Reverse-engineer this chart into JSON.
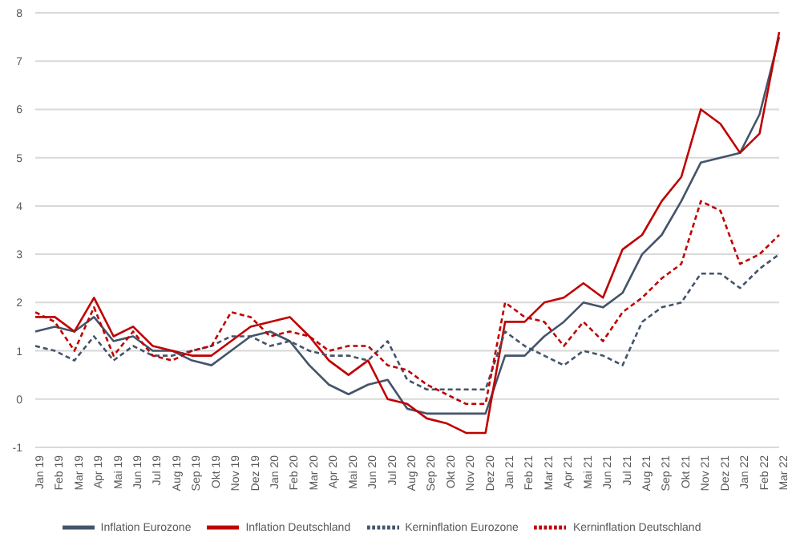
{
  "chart_data": {
    "type": "line",
    "categories": [
      "Jan 19",
      "Feb 19",
      "Mar 19",
      "Apr 19",
      "Mai 19",
      "Jun 19",
      "Jul 19",
      "Aug 19",
      "Sep 19",
      "Okt 19",
      "Nov 19",
      "Dez 19",
      "Jan 20",
      "Feb 20",
      "Mar 20",
      "Apr 20",
      "Mai 20",
      "Jun 20",
      "Jul 20",
      "Aug 20",
      "Sep 20",
      "Okt 20",
      "Nov 20",
      "Dez 20",
      "Jan 21",
      "Feb 21",
      "Mar 21",
      "Apr 21",
      "Mai 21",
      "Jun 21",
      "Jul 21",
      "Aug 21",
      "Sep 21",
      "Okt 21",
      "Nov 21",
      "Dez 21",
      "Jan 22",
      "Feb 22",
      "Mar 22"
    ],
    "series": [
      {
        "name": "Inflation Eurozone",
        "color": "#44546a",
        "line_style": "solid",
        "values": [
          1.4,
          1.5,
          1.4,
          1.7,
          1.2,
          1.3,
          1.0,
          1.0,
          0.8,
          0.7,
          1.0,
          1.3,
          1.4,
          1.2,
          0.7,
          0.3,
          0.1,
          0.3,
          0.4,
          -0.2,
          -0.3,
          -0.3,
          -0.3,
          -0.3,
          0.9,
          0.9,
          1.3,
          1.6,
          2.0,
          1.9,
          2.2,
          3.0,
          3.4,
          4.1,
          4.9,
          5.0,
          5.1,
          5.9,
          7.5
        ]
      },
      {
        "name": "Inflation Deutschland",
        "color": "#c00000",
        "line_style": "solid",
        "values": [
          1.7,
          1.7,
          1.4,
          2.1,
          1.3,
          1.5,
          1.1,
          1.0,
          0.9,
          0.9,
          1.2,
          1.5,
          1.6,
          1.7,
          1.3,
          0.8,
          0.5,
          0.8,
          0.0,
          -0.1,
          -0.4,
          -0.5,
          -0.7,
          -0.7,
          1.6,
          1.6,
          2.0,
          2.1,
          2.4,
          2.1,
          3.1,
          3.4,
          4.1,
          4.6,
          6.0,
          5.7,
          5.1,
          5.5,
          7.6
        ]
      },
      {
        "name": "Kerninflation Eurozone",
        "color": "#44546a",
        "line_style": "dashed",
        "values": [
          1.1,
          1.0,
          0.8,
          1.3,
          0.8,
          1.1,
          0.9,
          0.9,
          1.0,
          1.1,
          1.3,
          1.3,
          1.1,
          1.2,
          1.0,
          0.9,
          0.9,
          0.8,
          1.2,
          0.4,
          0.2,
          0.2,
          0.2,
          0.2,
          1.4,
          1.1,
          0.9,
          0.7,
          1.0,
          0.9,
          0.7,
          1.6,
          1.9,
          2.0,
          2.6,
          2.6,
          2.3,
          2.7,
          3.0
        ]
      },
      {
        "name": "Kerninflation Deutschland",
        "color": "#c00000",
        "line_style": "dashed",
        "values": [
          1.8,
          1.6,
          1.0,
          1.9,
          0.9,
          1.4,
          0.9,
          0.8,
          1.0,
          1.1,
          1.8,
          1.7,
          1.3,
          1.4,
          1.3,
          1.0,
          1.1,
          1.1,
          0.7,
          0.6,
          0.3,
          0.1,
          -0.1,
          -0.1,
          2.0,
          1.7,
          1.6,
          1.1,
          1.6,
          1.2,
          1.8,
          2.1,
          2.5,
          2.8,
          4.1,
          3.9,
          2.8,
          3.0,
          3.4
        ]
      }
    ],
    "ylim": [
      -1,
      8
    ],
    "yticks": [
      -1,
      0,
      1,
      2,
      3,
      4,
      5,
      6,
      7,
      8
    ],
    "grid": "y",
    "legend": "bottom",
    "marker": "none"
  }
}
